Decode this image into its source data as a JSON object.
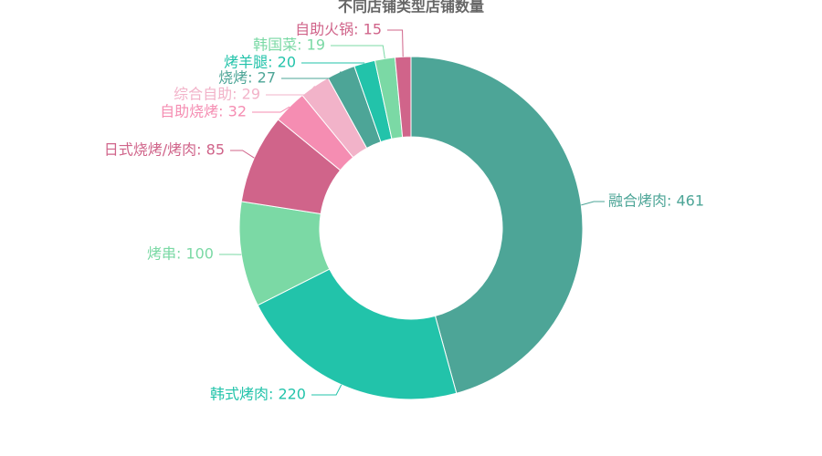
{
  "chart_data": {
    "type": "donut",
    "title": "不同店铺类型店铺数量",
    "categories": [
      "融合烤肉",
      "韩式烤肉",
      "烤串",
      "日式烧烤/烤肉",
      "自助烧烤",
      "综合自助",
      "烧烤",
      "烤羊腿",
      "韩国菜",
      "自助火锅"
    ],
    "values": [
      461,
      220,
      100,
      85,
      32,
      29,
      27,
      20,
      19,
      15
    ],
    "value_labels": [
      "融合烤肉: 461",
      "韩式烤肉: 220",
      "烤串: 100",
      "日式烧烤/烤肉: 85",
      "自助烧烤: 32",
      "综合自助: 29",
      "烧烤: 27",
      "烤羊腿: 20",
      "韩国菜: 19",
      "自助火锅: 15"
    ],
    "colors": [
      "#4da597",
      "#22c3aa",
      "#7bd9a5",
      "#d0648a",
      "#f58db2",
      "#f2b3c9",
      "#4da597",
      "#22c3aa",
      "#7bd9a5",
      "#d0648a"
    ]
  }
}
